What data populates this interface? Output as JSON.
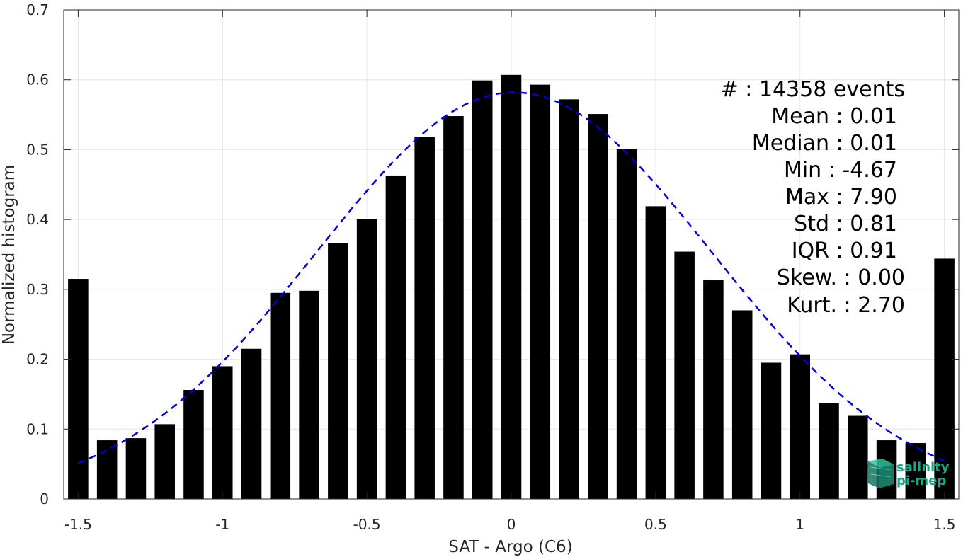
{
  "chart_data": {
    "type": "bar",
    "xlabel": "SAT - Argo (C6)",
    "ylabel": "Normalized histogram",
    "xlim": [
      -1.55,
      1.55
    ],
    "ylim": [
      0,
      0.7
    ],
    "xticks": [
      -1.5,
      -1,
      -0.5,
      0,
      0.5,
      1,
      1.5
    ],
    "xtick_labels": [
      "-1.5",
      "-1",
      "-0.5",
      "0",
      "0.5",
      "1",
      "1.5"
    ],
    "yticks": [
      0,
      0.1,
      0.2,
      0.3,
      0.4,
      0.5,
      0.6,
      0.7
    ],
    "ytick_labels": [
      "0",
      "0.1",
      "0.2",
      "0.3",
      "0.4",
      "0.5",
      "0.6",
      "0.7"
    ],
    "grid": true,
    "bar_color": "#000000",
    "bars": {
      "x": [
        -1.5,
        -1.4,
        -1.3,
        -1.2,
        -1.1,
        -1.0,
        -0.9,
        -0.8,
        -0.7,
        -0.6,
        -0.5,
        -0.4,
        -0.3,
        -0.2,
        -0.1,
        0.0,
        0.1,
        0.2,
        0.3,
        0.4,
        0.5,
        0.6,
        0.7,
        0.8,
        0.9,
        1.0,
        1.1,
        1.2,
        1.3,
        1.4,
        1.5
      ],
      "values": [
        0.315,
        0.084,
        0.087,
        0.107,
        0.156,
        0.19,
        0.215,
        0.295,
        0.298,
        0.366,
        0.401,
        0.463,
        0.518,
        0.548,
        0.599,
        0.607,
        0.593,
        0.572,
        0.551,
        0.501,
        0.419,
        0.354,
        0.313,
        0.27,
        0.195,
        0.207,
        0.137,
        0.119,
        0.084,
        0.08,
        0.344
      ]
    },
    "fit": {
      "type": "gaussian",
      "style": "dashed",
      "color": "#0000e0",
      "mean": 0.01,
      "peak": 0.582,
      "std": 0.685,
      "x_range": [
        -1.5,
        1.5
      ]
    }
  },
  "stats": [
    {
      "label": "#  : 14358 events"
    },
    {
      "label": "Mean : 0.01"
    },
    {
      "label": "Median : 0.01"
    },
    {
      "label": "Min : -4.67"
    },
    {
      "label": "Max : 7.90"
    },
    {
      "label": "Std : 0.81"
    },
    {
      "label": "IQR : 0.91"
    },
    {
      "label": "Skew. : 0.00"
    },
    {
      "label": "Kurt. : 2.70"
    }
  ],
  "logo": {
    "line1": "salinity",
    "line2": "pi-mep",
    "color": "#1aa88a"
  }
}
